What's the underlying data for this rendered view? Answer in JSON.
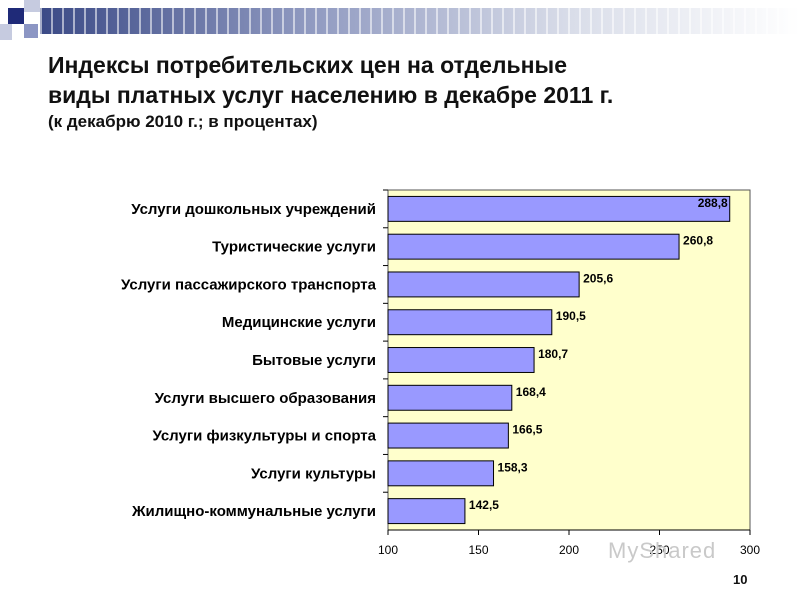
{
  "slide": {
    "title_line1": "Индексы потребительских цен на отдельные",
    "title_line2": "виды платных услуг населению в декабре 2011 г.",
    "subtitle": "(к  декабрю 2010 г.; в процентах)",
    "page_number": "10",
    "watermark": "MyShared"
  },
  "chart_data": {
    "type": "bar",
    "orientation": "horizontal",
    "title": "",
    "xlabel": "",
    "ylabel": "",
    "categories": [
      "Услуги дошкольных учреждений",
      "Туристические услуги",
      "Услуги пассажирского транспорта",
      "Медицинские услуги",
      "Бытовые услуги",
      "Услуги высшего образования",
      "Услуги физкультуры и спорта",
      "Услуги культуры",
      "Жилищно-коммунальные услуги"
    ],
    "values": [
      288.8,
      260.8,
      205.6,
      190.5,
      180.7,
      168.4,
      166.5,
      158.3,
      142.5
    ],
    "data_labels": [
      "288,8",
      "260,8",
      "205,6",
      "190,5",
      "180,7",
      "168,4",
      "166,5",
      "158,3",
      "142,5"
    ],
    "xlim": [
      100,
      300
    ],
    "xticks": [
      100,
      150,
      200,
      250,
      300
    ],
    "grid": false,
    "colors": {
      "bar_fill": "#9999ff",
      "bar_stroke": "#000000",
      "plot_bg": "#ffffcc"
    }
  }
}
